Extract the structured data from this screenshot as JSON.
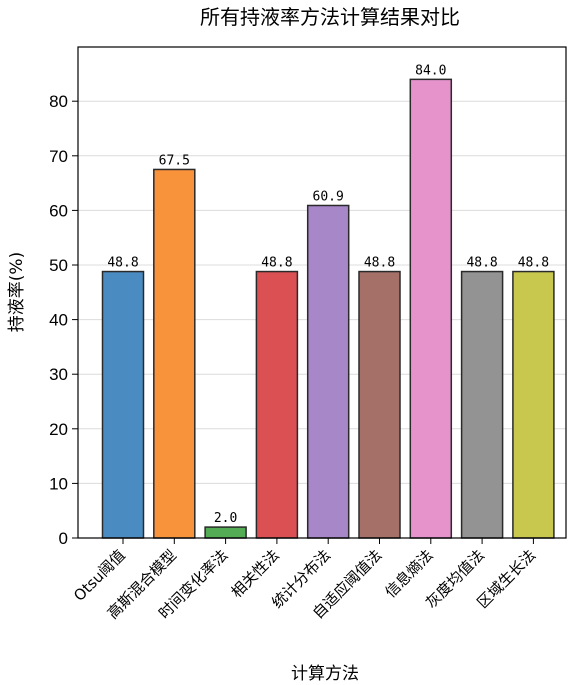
{
  "chart_data": {
    "type": "bar",
    "title": "所有持液率方法计算结果对比",
    "xlabel": "计算方法",
    "ylabel": "持液率(%)",
    "ylim": [
      0,
      90
    ],
    "yticks": [
      0,
      10,
      20,
      30,
      40,
      50,
      60,
      70,
      80
    ],
    "grid": "y",
    "categories": [
      "Otsu阈值",
      "高斯混合模型",
      "时间变化率法",
      "相关性法",
      "统计分布法",
      "自适应阈值法",
      "信息熵法",
      "灰度均值法",
      "区域生长法"
    ],
    "values": [
      48.8,
      67.5,
      2.0,
      48.8,
      60.9,
      48.8,
      84.0,
      48.8,
      48.8
    ],
    "value_labels": [
      "48.8",
      "67.5",
      "2.0",
      "48.8",
      "60.9",
      "48.8",
      "84.0",
      "48.8",
      "48.8"
    ],
    "colors": [
      "#4a8cc2",
      "#f8923b",
      "#54ad54",
      "#db5053",
      "#a787c7",
      "#a47068",
      "#e693cc",
      "#939393",
      "#c9c84e"
    ]
  }
}
